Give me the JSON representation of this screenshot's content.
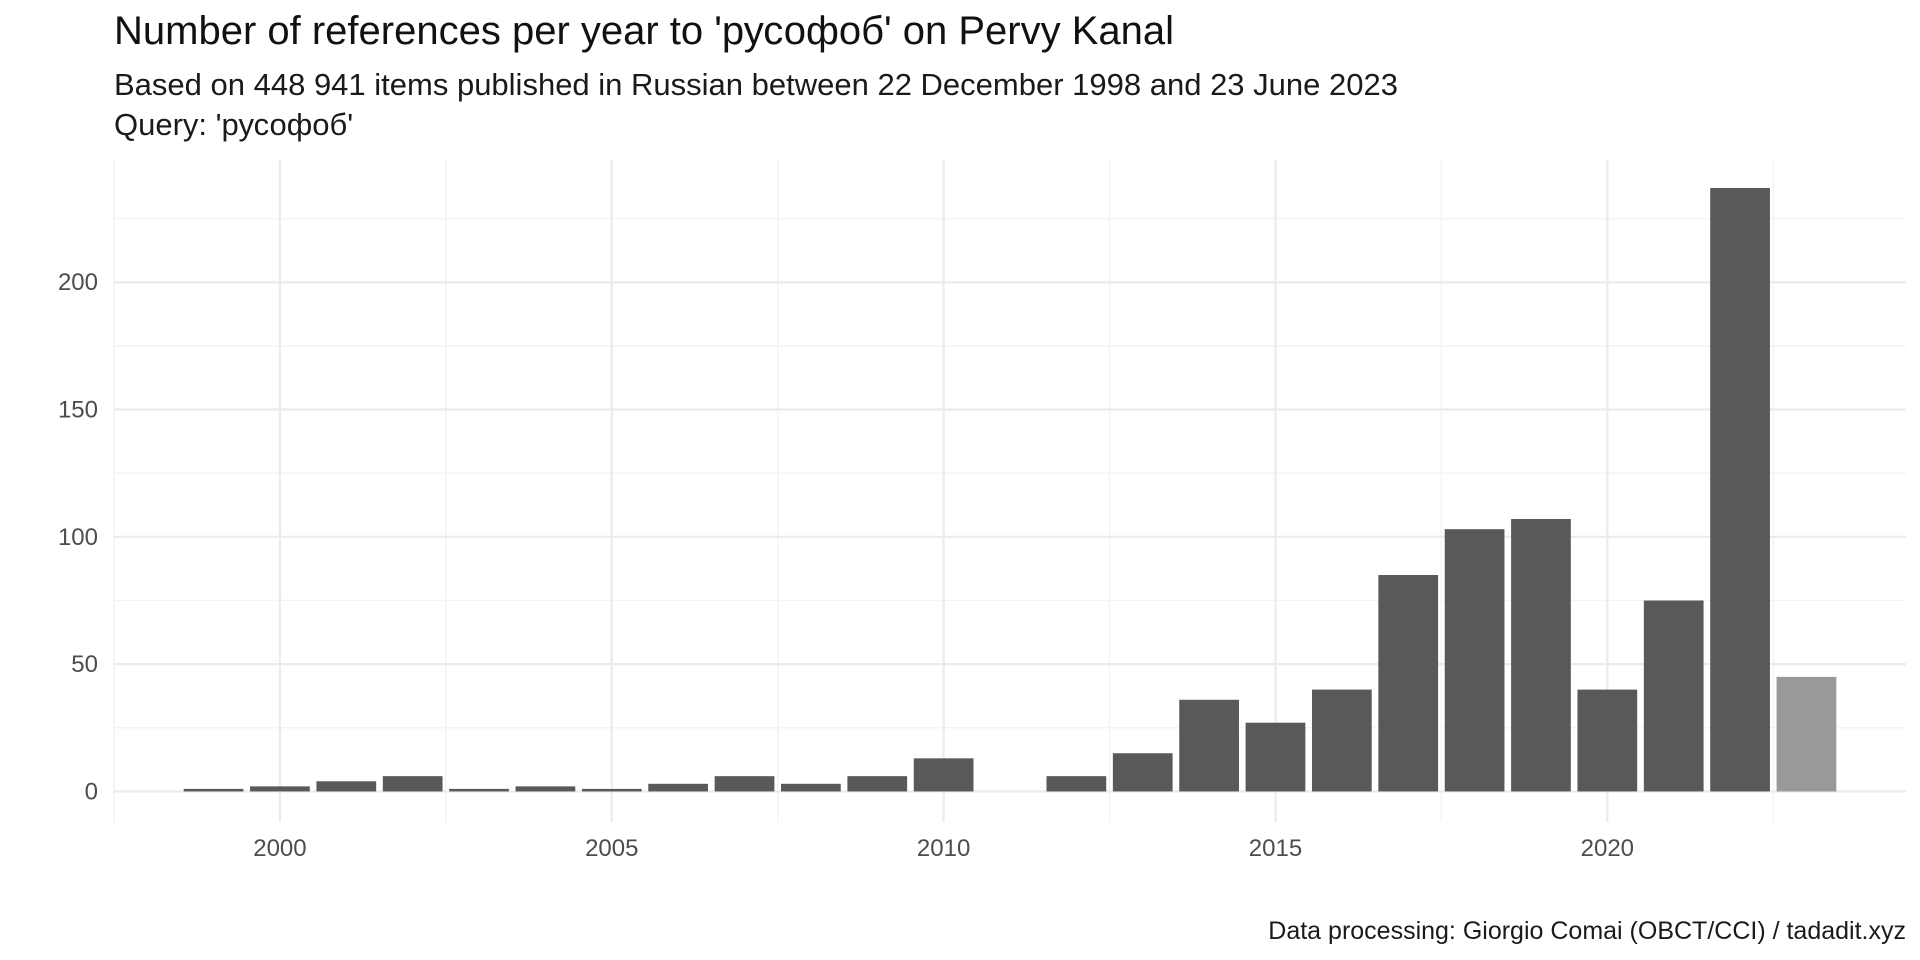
{
  "chart_data": {
    "type": "bar",
    "title": "Number of references per year to 'русофоб' on Pervy Kanal",
    "subtitle_lines": [
      "Based on 448 941 items published in Russian between 22 December 1998 and 23 June 2023",
      "Query: 'русофоб'"
    ],
    "caption": "Data processing: Giorgio Comai (OBCT/CCI) / tadadit.xyz",
    "xlabel": "",
    "ylabel": "",
    "x_ticks": [
      "2000",
      "2005",
      "2010",
      "2015",
      "2020"
    ],
    "x_tick_values": [
      2000,
      2005,
      2010,
      2015,
      2020
    ],
    "y_ticks": [
      "0",
      "50",
      "100",
      "150",
      "200"
    ],
    "y_tick_values": [
      0,
      50,
      100,
      150,
      200
    ],
    "xlim": [
      1997.5,
      2024.5
    ],
    "ylim": [
      -12,
      248
    ],
    "grid": true,
    "legend": "none",
    "colors": {
      "bar": "#595959",
      "bar_partial_year": "#999999",
      "grid_major": "#ebebeb",
      "grid_minor": "#f3f3f3"
    },
    "categories": [
      1999,
      2000,
      2001,
      2002,
      2003,
      2004,
      2005,
      2006,
      2007,
      2008,
      2009,
      2010,
      2012,
      2013,
      2014,
      2015,
      2016,
      2017,
      2018,
      2019,
      2020,
      2021,
      2022,
      2023
    ],
    "values": [
      1,
      2,
      4,
      6,
      1,
      2,
      1,
      3,
      6,
      3,
      6,
      13,
      6,
      15,
      36,
      27,
      40,
      85,
      103,
      107,
      40,
      75,
      237,
      45
    ],
    "partial_year": [
      false,
      false,
      false,
      false,
      false,
      false,
      false,
      false,
      false,
      false,
      false,
      false,
      false,
      false,
      false,
      false,
      false,
      false,
      false,
      false,
      false,
      false,
      false,
      true
    ]
  }
}
